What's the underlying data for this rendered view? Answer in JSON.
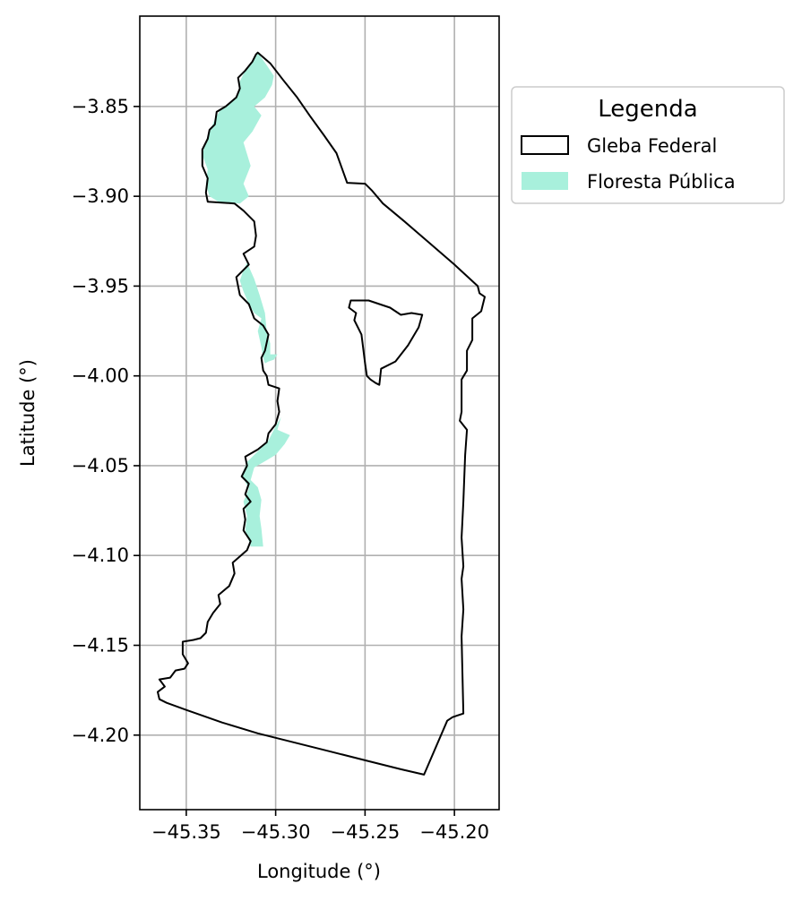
{
  "chart_data": {
    "type": "map",
    "xlabel": "Longitude (°)",
    "ylabel": "Latitude (°)",
    "xlim": [
      -45.376,
      -45.175
    ],
    "ylim": [
      -4.2415,
      -3.7997
    ],
    "xticks": [
      -45.35,
      -45.3,
      -45.25,
      -45.2
    ],
    "xtick_labels": [
      "−45.35",
      "−45.30",
      "−45.25",
      "−45.20"
    ],
    "yticks": [
      -3.85,
      -3.9,
      -3.95,
      -4.0,
      -4.05,
      -4.1,
      -4.15,
      -4.2
    ],
    "ytick_labels": [
      "−3.85",
      "−3.90",
      "−3.95",
      "−4.00",
      "−4.05",
      "−4.10",
      "−4.15",
      "−4.20"
    ],
    "grid": true,
    "legend": {
      "title": "Legenda",
      "placement": "outside upper right",
      "entries": [
        {
          "label": "Gleba Federal",
          "style": "outline",
          "color": "#000000"
        },
        {
          "label": "Floresta Pública",
          "style": "fill",
          "color": "#a8f0dc"
        }
      ]
    },
    "layers": [
      {
        "name": "Gleba Federal",
        "geometry": "polygon",
        "rings": [
          [
            [
              -45.31,
              -3.82
            ],
            [
              -45.303,
              -3.826
            ],
            [
              -45.296,
              -3.835
            ],
            [
              -45.288,
              -3.845
            ],
            [
              -45.281,
              -3.855
            ],
            [
              -45.273,
              -3.866
            ],
            [
              -45.266,
              -3.876
            ],
            [
              -45.26,
              -3.8925
            ],
            [
              -45.25,
              -3.893
            ],
            [
              -45.246,
              -3.897
            ],
            [
              -45.24,
              -3.904
            ],
            [
              -45.228,
              -3.914
            ],
            [
              -45.214,
              -3.926
            ],
            [
              -45.2,
              -3.938
            ],
            [
              -45.187,
              -3.95
            ],
            [
              -45.186,
              -3.954
            ],
            [
              -45.183,
              -3.956
            ],
            [
              -45.185,
              -3.964
            ],
            [
              -45.19,
              -3.968
            ],
            [
              -45.19,
              -3.98
            ],
            [
              -45.193,
              -3.986
            ],
            [
              -45.193,
              -3.997
            ],
            [
              -45.196,
              -4.002
            ],
            [
              -45.196,
              -4.02
            ],
            [
              -45.197,
              -4.025
            ],
            [
              -45.193,
              -4.03
            ],
            [
              -45.194,
              -4.044
            ],
            [
              -45.195,
              -4.07
            ],
            [
              -45.196,
              -4.09
            ],
            [
              -45.195,
              -4.106
            ],
            [
              -45.196,
              -4.113
            ],
            [
              -45.195,
              -4.13
            ],
            [
              -45.196,
              -4.145
            ],
            [
              -45.195,
              -4.188
            ],
            [
              -45.201,
              -4.19
            ],
            [
              -45.204,
              -4.192
            ],
            [
              -45.217,
              -4.222
            ],
            [
              -45.23,
              -4.219
            ],
            [
              -45.25,
              -4.214
            ],
            [
              -45.27,
              -4.209
            ],
            [
              -45.29,
              -4.204
            ],
            [
              -45.31,
              -4.199
            ],
            [
              -45.33,
              -4.193
            ],
            [
              -45.35,
              -4.186
            ],
            [
              -45.361,
              -4.182
            ],
            [
              -45.365,
              -4.18
            ],
            [
              -45.366,
              -4.176
            ],
            [
              -45.362,
              -4.173
            ],
            [
              -45.365,
              -4.169
            ],
            [
              -45.359,
              -4.168
            ],
            [
              -45.356,
              -4.164
            ],
            [
              -45.351,
              -4.163
            ],
            [
              -45.349,
              -4.16
            ],
            [
              -45.352,
              -4.155
            ],
            [
              -45.352,
              -4.148
            ],
            [
              -45.346,
              -4.147
            ],
            [
              -45.342,
              -4.146
            ],
            [
              -45.339,
              -4.143
            ],
            [
              -45.338,
              -4.137
            ],
            [
              -45.335,
              -4.132
            ],
            [
              -45.331,
              -4.127
            ],
            [
              -45.332,
              -4.122
            ],
            [
              -45.326,
              -4.117
            ],
            [
              -45.323,
              -4.11
            ],
            [
              -45.324,
              -4.104
            ],
            [
              -45.316,
              -4.097
            ],
            [
              -45.314,
              -4.092
            ],
            [
              -45.318,
              -4.086
            ],
            [
              -45.317,
              -4.08
            ],
            [
              -45.318,
              -4.074
            ],
            [
              -45.314,
              -4.07
            ],
            [
              -45.317,
              -4.066
            ],
            [
              -45.315,
              -4.06
            ],
            [
              -45.319,
              -4.056
            ],
            [
              -45.316,
              -4.05
            ],
            [
              -45.317,
              -4.045
            ],
            [
              -45.31,
              -4.041
            ],
            [
              -45.305,
              -4.037
            ],
            [
              -45.304,
              -4.032
            ],
            [
              -45.3,
              -4.027
            ],
            [
              -45.298,
              -4.02
            ],
            [
              -45.299,
              -4.014
            ],
            [
              -45.298,
              -4.007
            ],
            [
              -45.304,
              -4.005
            ],
            [
              -45.305,
              -4.0
            ],
            [
              -45.307,
              -3.997
            ],
            [
              -45.308,
              -3.99
            ],
            [
              -45.306,
              -3.986
            ],
            [
              -45.304,
              -3.977
            ],
            [
              -45.307,
              -3.972
            ],
            [
              -45.312,
              -3.968
            ],
            [
              -45.315,
              -3.96
            ],
            [
              -45.32,
              -3.955
            ],
            [
              -45.322,
              -3.945
            ],
            [
              -45.315,
              -3.938
            ],
            [
              -45.318,
              -3.932
            ],
            [
              -45.312,
              -3.928
            ],
            [
              -45.311,
              -3.922
            ],
            [
              -45.312,
              -3.914
            ],
            [
              -45.318,
              -3.908
            ],
            [
              -45.323,
              -3.904
            ],
            [
              -45.338,
              -3.903
            ],
            [
              -45.339,
              -3.898
            ],
            [
              -45.338,
              -3.89
            ],
            [
              -45.341,
              -3.883
            ],
            [
              -45.341,
              -3.874
            ],
            [
              -45.338,
              -3.868
            ],
            [
              -45.337,
              -3.863
            ],
            [
              -45.334,
              -3.86
            ],
            [
              -45.333,
              -3.853
            ],
            [
              -45.328,
              -3.85
            ],
            [
              -45.322,
              -3.845
            ],
            [
              -45.32,
              -3.84
            ],
            [
              -45.321,
              -3.834
            ],
            [
              -45.317,
              -3.83
            ],
            [
              -45.313,
              -3.825
            ],
            [
              -45.311,
              -3.821
            ],
            [
              -45.31,
              -3.82
            ]
          ],
          [
            [
              -45.258,
              -3.958
            ],
            [
              -45.248,
              -3.958
            ],
            [
              -45.242,
              -3.96
            ],
            [
              -45.236,
              -3.962
            ],
            [
              -45.23,
              -3.966
            ],
            [
              -45.224,
              -3.965
            ],
            [
              -45.218,
              -3.966
            ],
            [
              -45.22,
              -3.973
            ],
            [
              -45.226,
              -3.983
            ],
            [
              -45.233,
              -3.992
            ],
            [
              -45.241,
              -3.996
            ],
            [
              -45.242,
              -4.005
            ],
            [
              -45.244,
              -4.004
            ],
            [
              -45.247,
              -4.002
            ],
            [
              -45.249,
              -4.0
            ],
            [
              -45.25,
              -3.993
            ],
            [
              -45.251,
              -3.985
            ],
            [
              -45.252,
              -3.977
            ],
            [
              -45.256,
              -3.969
            ],
            [
              -45.255,
              -3.965
            ],
            [
              -45.259,
              -3.962
            ],
            [
              -45.258,
              -3.958
            ]
          ]
        ]
      },
      {
        "name": "Floresta Pública",
        "geometry": "multipolygon",
        "polygons": [
          [
            [
              -45.31,
              -3.82
            ],
            [
              -45.305,
              -3.827
            ],
            [
              -45.301,
              -3.833
            ],
            [
              -45.302,
              -3.838
            ],
            [
              -45.306,
              -3.845
            ],
            [
              -45.312,
              -3.85
            ],
            [
              -45.308,
              -3.855
            ],
            [
              -45.313,
              -3.864
            ],
            [
              -45.318,
              -3.87
            ],
            [
              -45.314,
              -3.883
            ],
            [
              -45.318,
              -3.893
            ],
            [
              -45.315,
              -3.9
            ],
            [
              -45.32,
              -3.904
            ],
            [
              -45.332,
              -3.903
            ],
            [
              -45.337,
              -3.9
            ],
            [
              -45.339,
              -3.893
            ],
            [
              -45.338,
              -3.885
            ],
            [
              -45.341,
              -3.877
            ],
            [
              -45.339,
              -3.869
            ],
            [
              -45.336,
              -3.862
            ],
            [
              -45.334,
              -3.857
            ],
            [
              -45.331,
              -3.852
            ],
            [
              -45.325,
              -3.848
            ],
            [
              -45.321,
              -3.843
            ],
            [
              -45.32,
              -3.836
            ],
            [
              -45.317,
              -3.83
            ],
            [
              -45.312,
              -3.823
            ],
            [
              -45.31,
              -3.82
            ]
          ],
          [
            [
              -45.316,
              -3.937
            ],
            [
              -45.312,
              -3.946
            ],
            [
              -45.309,
              -3.955
            ],
            [
              -45.306,
              -3.965
            ],
            [
              -45.305,
              -3.975
            ],
            [
              -45.303,
              -3.982
            ],
            [
              -45.303,
              -3.988
            ],
            [
              -45.299,
              -3.988
            ],
            [
              -45.301,
              -3.991
            ],
            [
              -45.304,
              -3.992
            ],
            [
              -45.306,
              -3.993
            ],
            [
              -45.307,
              -3.99
            ],
            [
              -45.308,
              -3.984
            ],
            [
              -45.31,
              -3.975
            ],
            [
              -45.308,
              -3.968
            ],
            [
              -45.312,
              -3.965
            ],
            [
              -45.315,
              -3.96
            ],
            [
              -45.318,
              -3.953
            ],
            [
              -45.32,
              -3.947
            ],
            [
              -45.318,
              -3.941
            ],
            [
              -45.316,
              -3.937
            ]
          ],
          [
            [
              -45.297,
              -4.023
            ],
            [
              -45.299,
              -4.03
            ],
            [
              -45.292,
              -4.033
            ],
            [
              -45.295,
              -4.038
            ],
            [
              -45.3,
              -4.044
            ],
            [
              -45.305,
              -4.047
            ],
            [
              -45.312,
              -4.051
            ],
            [
              -45.314,
              -4.058
            ],
            [
              -45.31,
              -4.062
            ],
            [
              -45.308,
              -4.069
            ],
            [
              -45.309,
              -4.078
            ],
            [
              -45.308,
              -4.085
            ],
            [
              -45.307,
              -4.095
            ],
            [
              -45.314,
              -4.095
            ],
            [
              -45.317,
              -4.086
            ],
            [
              -45.316,
              -4.078
            ],
            [
              -45.318,
              -4.07
            ],
            [
              -45.315,
              -4.063
            ],
            [
              -45.319,
              -4.055
            ],
            [
              -45.316,
              -4.048
            ],
            [
              -45.31,
              -4.042
            ],
            [
              -45.304,
              -4.036
            ],
            [
              -45.3,
              -4.028
            ],
            [
              -45.297,
              -4.023
            ]
          ]
        ]
      }
    ]
  }
}
